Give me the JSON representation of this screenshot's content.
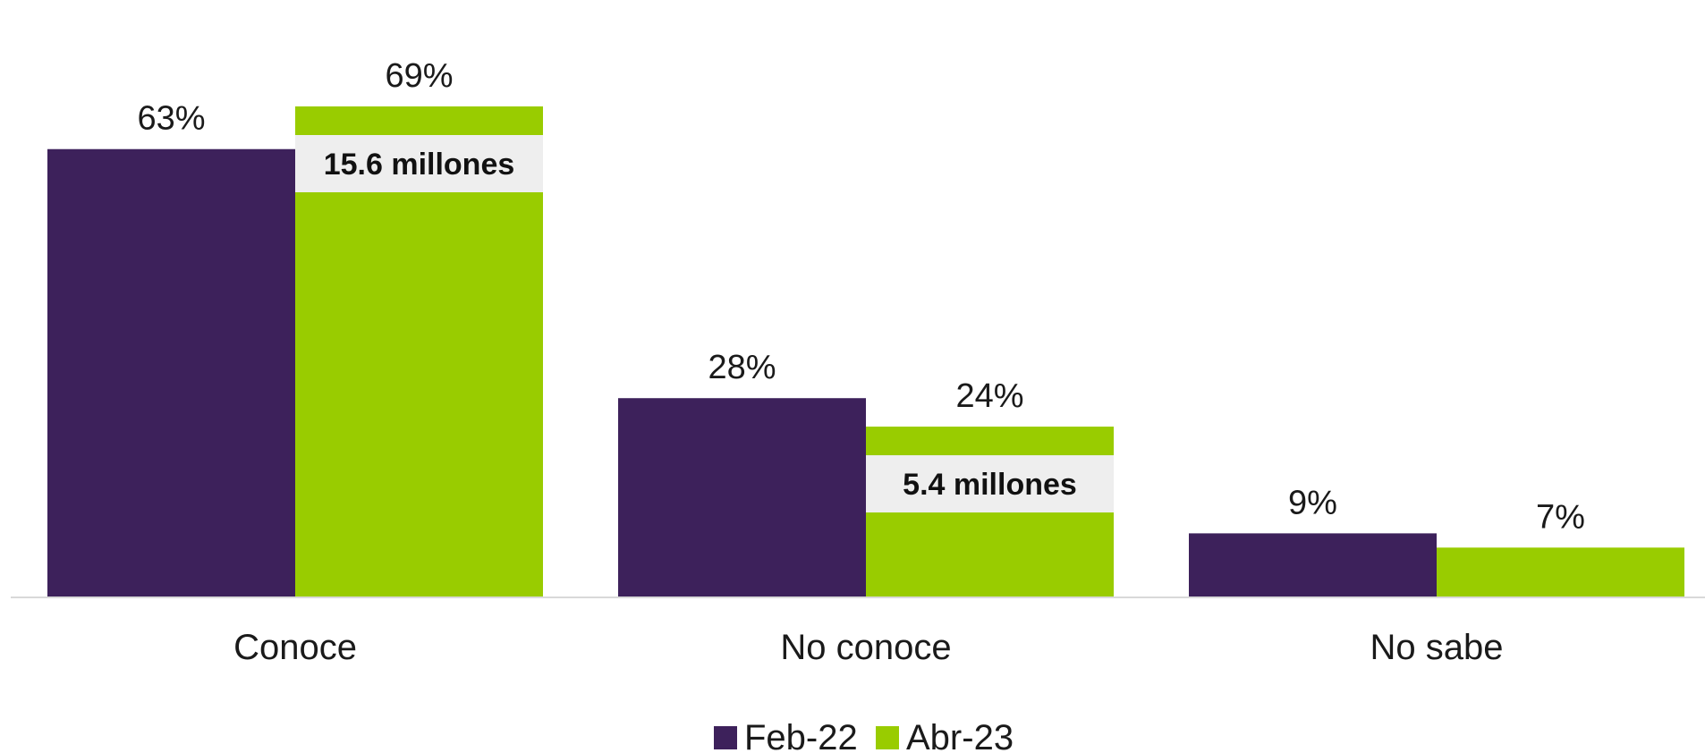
{
  "chart_data": {
    "type": "bar",
    "categories": [
      "Conoce",
      "No conoce",
      "No sabe"
    ],
    "series": [
      {
        "name": "Feb-22",
        "values": [
          63,
          28,
          9
        ],
        "labels": [
          "63%",
          "28%",
          "9%"
        ],
        "color": "#3d215b"
      },
      {
        "name": "Abr-23",
        "values": [
          69,
          24,
          7
        ],
        "labels": [
          "69%",
          "24%",
          "7%"
        ],
        "color": "#99cc00"
      }
    ],
    "annotations": [
      {
        "category": "Conoce",
        "series": "Abr-23",
        "text": "15.6 millones"
      },
      {
        "category": "No conoce",
        "series": "Abr-23",
        "text": "5.4 millones"
      }
    ],
    "ylim": [
      0,
      69
    ],
    "grid": false,
    "legend_position": "bottom-center",
    "axis_color": "#d9d9d9",
    "annotation_background": "#eeeeee"
  }
}
